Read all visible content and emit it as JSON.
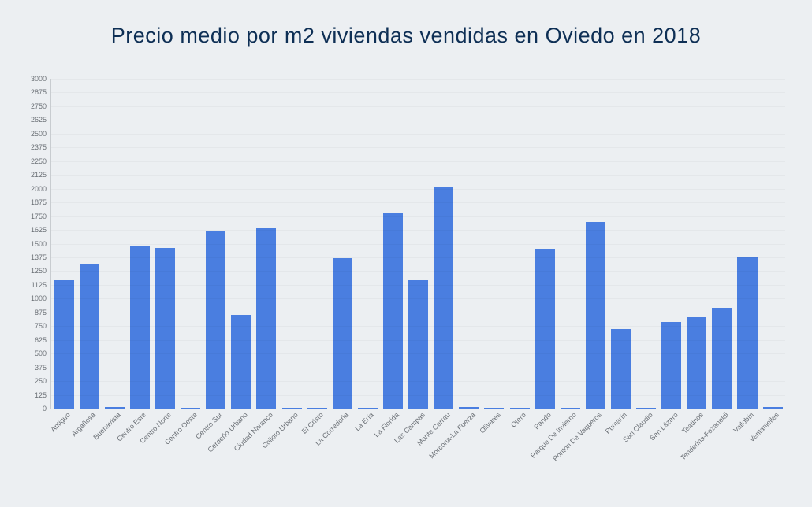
{
  "chart": {
    "type": "bar",
    "title": "Precio medio por m2 viviendas vendidas en Oviedo en 2018",
    "title_fontsize": 27,
    "title_color": "#0e2f55",
    "background_color": "#eceff2",
    "bar_color": "#4a7ee0",
    "axis_color": "#c8ccd0",
    "tick_label_color": "#6a6f75",
    "tick_fontsize": 9,
    "xlabel_fontsize": 9,
    "ylim": [
      0,
      3000
    ],
    "ytick_step": 125,
    "bar_width_ratio": 0.78,
    "categories": [
      "Antiguo",
      "Argañosa",
      "Buenavista",
      "Centro Este",
      "Centro Norte",
      "Centro Oeste",
      "Centro Sur",
      "Cerdeño-Urbano",
      "Ciudad Naranco",
      "Colloto Urbano",
      "El Cristo",
      "La Corredoria",
      "La Ería",
      "La Florida",
      "Las Campas",
      "Monte Cerrau",
      "Morcona-La Fuerza",
      "Olivares",
      "Otero",
      "Pando",
      "Parque De Invierno",
      "Pontón De Vaqueros",
      "Pumarín",
      "San Claudio",
      "San Lázaro",
      "Teatinos",
      "Tenderina-Fozaneldi",
      "Vallobín",
      "Ventanielles"
    ],
    "values": [
      1170,
      1320,
      15,
      1475,
      1460,
      10,
      1610,
      850,
      1650,
      5,
      10,
      1370,
      5,
      1775,
      1170,
      2020,
      15,
      10,
      5,
      1450,
      5,
      1700,
      720,
      10,
      790,
      830,
      920,
      1380,
      15
    ]
  }
}
